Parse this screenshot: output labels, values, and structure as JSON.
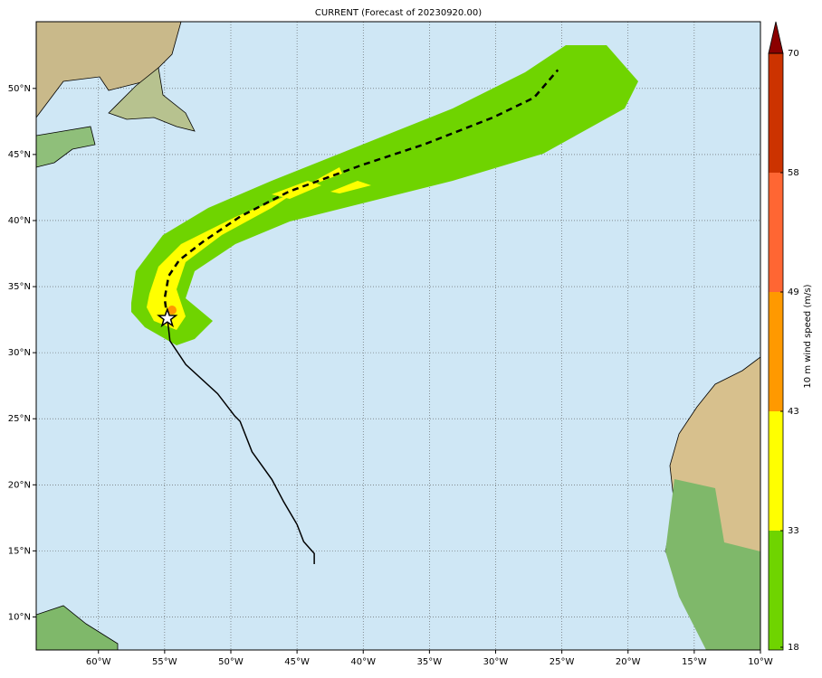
{
  "title": "CURRENT (Forecast of 20230920.00)",
  "map": {
    "lonlim": [
      -64.7,
      -10
    ],
    "latlim": [
      7.5,
      55.05
    ],
    "lonticks": [
      {
        "value": -60,
        "label": "60°W"
      },
      {
        "value": -55,
        "label": "55°W"
      },
      {
        "value": -50,
        "label": "50°W"
      },
      {
        "value": -45,
        "label": "45°W"
      },
      {
        "value": -40,
        "label": "40°W"
      },
      {
        "value": -35,
        "label": "35°W"
      },
      {
        "value": -30,
        "label": "30°W"
      },
      {
        "value": -25,
        "label": "25°W"
      },
      {
        "value": -20,
        "label": "20°W"
      },
      {
        "value": -15,
        "label": "15°W"
      },
      {
        "value": -10,
        "label": "10°W"
      }
    ],
    "latticks": [
      {
        "value": 10,
        "label": "10°N"
      },
      {
        "value": 15,
        "label": "15°N"
      },
      {
        "value": 20,
        "label": "20°N"
      },
      {
        "value": 25,
        "label": "25°N"
      },
      {
        "value": 30,
        "label": "30°N"
      },
      {
        "value": 35,
        "label": "35°N"
      },
      {
        "value": 40,
        "label": "40°N"
      },
      {
        "value": 45,
        "label": "45°N"
      },
      {
        "value": 50,
        "label": "50°N"
      }
    ],
    "grid": true,
    "track": {
      "color": "#000000",
      "lon": [
        -43.7,
        -43.7,
        -44.5,
        -45.0,
        -46.0,
        -46.9,
        -48.4,
        -49.3,
        -49.7,
        -51.0,
        -53.4,
        -54.6,
        -54.7,
        -54.8
      ],
      "lat": [
        14.0,
        14.8,
        15.7,
        17.0,
        18.7,
        20.4,
        22.5,
        24.8,
        25.2,
        26.9,
        29.1,
        30.9,
        31.8,
        32.6
      ]
    },
    "forecast": {
      "color": "#000000",
      "lon": [
        -54.8,
        -55.0,
        -54.7,
        -53.9,
        -52.1,
        -49.3,
        -45.6,
        -40.1,
        -35.3,
        -30.2,
        -27.1,
        -25.3
      ],
      "lat": [
        32.6,
        34.1,
        35.8,
        37.0,
        38.4,
        40.3,
        42.2,
        44.2,
        45.8,
        47.8,
        49.3,
        51.4
      ]
    },
    "storm": {
      "lon": -54.8,
      "lat": 32.6
    }
  },
  "colorbar": {
    "label": "10 m wind speed (m/s)",
    "levels": [
      18,
      33,
      43,
      49,
      58,
      70
    ],
    "colors": [
      "#6fd400",
      "#ffff00",
      "#ff9900",
      "#ff6633",
      "#cc3300"
    ],
    "extend_color": "#8b0000"
  }
}
